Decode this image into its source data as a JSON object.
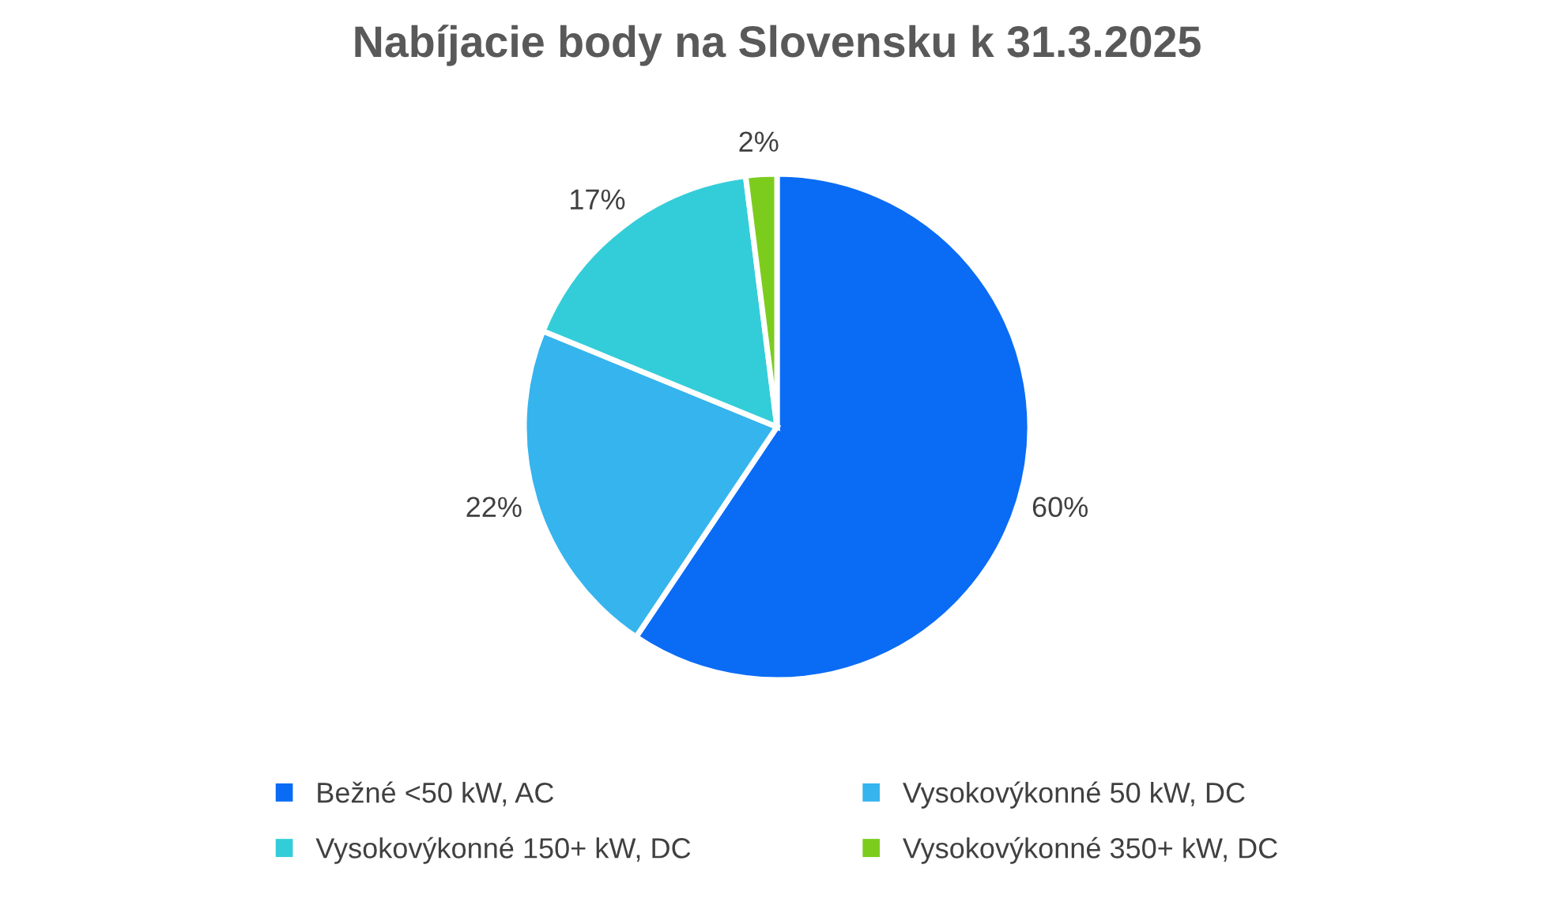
{
  "chart_data": {
    "type": "pie",
    "title": "Nabíjacie body na Slovensku k 31.3.2025",
    "categories": [
      "Bežné <50 kW, AC",
      "Vysokovýkonné 50 kW, DC",
      "Vysokovýkonné 150+ kW, DC",
      "Vysokovýkonné 350+ kW, DC"
    ],
    "values": [
      60,
      22,
      17,
      2
    ],
    "colors": [
      "#0a6cf5",
      "#36b4ee",
      "#33cdd9",
      "#7ccc1e"
    ],
    "value_labels": [
      "60%",
      "22%",
      "17%",
      "2%"
    ],
    "legend": "bottom"
  }
}
